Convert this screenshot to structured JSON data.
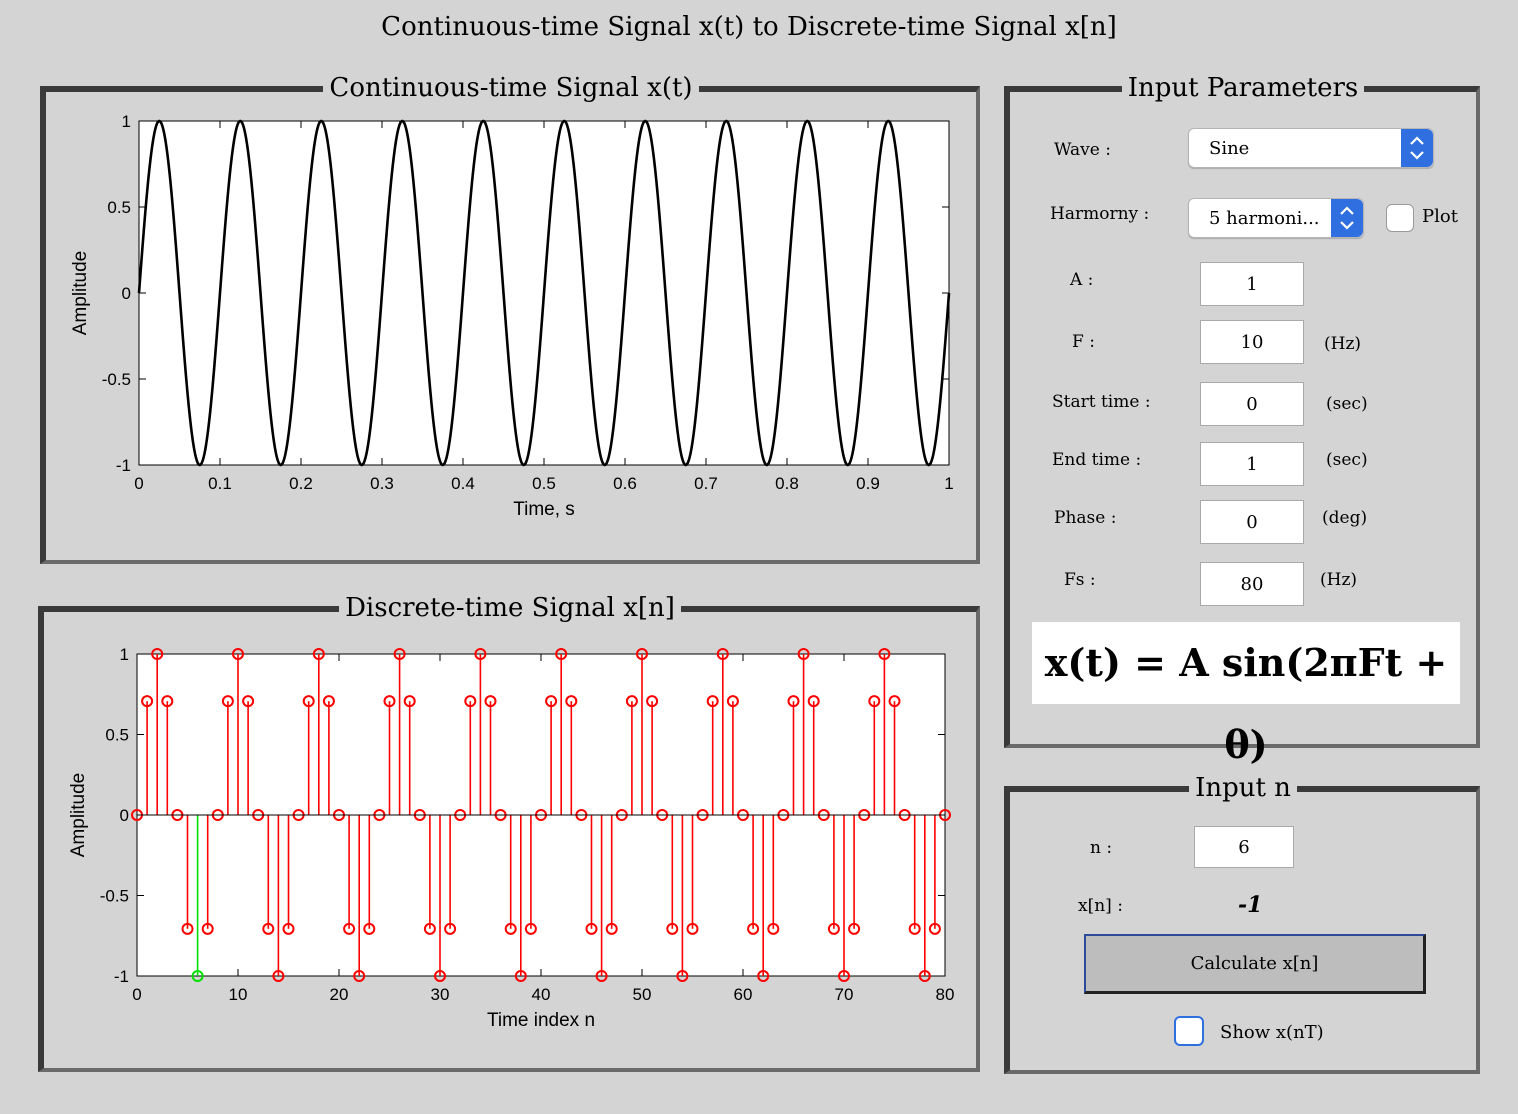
{
  "window_title": "Continuous-time Signal x(t) to Discrete-time Signal x[n]",
  "continuous_panel": {
    "title": "Continuous-time Signal x(t)",
    "chart_data": {
      "type": "line",
      "xlabel": "Time, s",
      "ylabel": "Amplitude",
      "xlim": [
        0,
        1
      ],
      "ylim": [
        -1,
        1
      ],
      "xticks": [
        "0",
        "0.1",
        "0.2",
        "0.3",
        "0.4",
        "0.5",
        "0.6",
        "0.7",
        "0.8",
        "0.9",
        "1"
      ],
      "yticks": [
        "-1",
        "-0.5",
        "0",
        "0.5",
        "1"
      ],
      "function": "sin(2*pi*10*t)",
      "amplitude": 1,
      "frequency_hz": 10,
      "t_start": 0,
      "t_end": 1,
      "line_color": "#000000"
    }
  },
  "discrete_panel": {
    "title": "Discrete-time Signal x[n]",
    "chart_data": {
      "type": "stem",
      "xlabel": "Time index n",
      "ylabel": "Amplitude",
      "xlim": [
        0,
        80
      ],
      "ylim": [
        -1,
        1
      ],
      "xticks": [
        "0",
        "10",
        "20",
        "30",
        "40",
        "50",
        "60",
        "70",
        "80"
      ],
      "yticks": [
        "-1",
        "-0.5",
        "0",
        "0.5",
        "1"
      ],
      "n": [
        0,
        1,
        2,
        3,
        4,
        5,
        6,
        7,
        8,
        9,
        10,
        11,
        12,
        13,
        14,
        15,
        16,
        17,
        18,
        19,
        20,
        21,
        22,
        23,
        24,
        25,
        26,
        27,
        28,
        29,
        30,
        31,
        32,
        33,
        34,
        35,
        36,
        37,
        38,
        39,
        40,
        41,
        42,
        43,
        44,
        45,
        46,
        47,
        48,
        49,
        50,
        51,
        52,
        53,
        54,
        55,
        56,
        57,
        58,
        59,
        60,
        61,
        62,
        63,
        64,
        65,
        66,
        67,
        68,
        69,
        70,
        71,
        72,
        73,
        74,
        75,
        76,
        77,
        78,
        79,
        80
      ],
      "values": [
        0,
        0.707,
        1,
        0.707,
        0,
        -0.707,
        -1,
        -0.707,
        0,
        0.707,
        1,
        0.707,
        0,
        -0.707,
        -1,
        -0.707,
        0,
        0.707,
        1,
        0.707,
        0,
        -0.707,
        -1,
        -0.707,
        0,
        0.707,
        1,
        0.707,
        0,
        -0.707,
        -1,
        -0.707,
        0,
        0.707,
        1,
        0.707,
        0,
        -0.707,
        -1,
        -0.707,
        0,
        0.707,
        1,
        0.707,
        0,
        -0.707,
        -1,
        -0.707,
        0,
        0.707,
        1,
        0.707,
        0,
        -0.707,
        -1,
        -0.707,
        0,
        0.707,
        1,
        0.707,
        0,
        -0.707,
        -1,
        -0.707,
        0,
        0.707,
        1,
        0.707,
        0,
        -0.707,
        -1,
        -0.707,
        0,
        0.707,
        1,
        0.707,
        0,
        -0.707,
        -1,
        -0.707,
        0
      ],
      "stem_color": "#ff0000",
      "highlight_index": 6,
      "highlight_color": "#00e000"
    }
  },
  "input_parameters": {
    "title": "Input Parameters",
    "wave_label": "Wave :",
    "wave_value": "Sine",
    "harmony_label": "Harmorny :",
    "harmony_value": "5 harmoni...",
    "plot_label": "Plot",
    "plot_checked": false,
    "a_label": "A :",
    "a_value": "1",
    "f_label": "F :",
    "f_value": "10",
    "f_unit": "(Hz)",
    "start_label": "Start time :",
    "start_value": "0",
    "start_unit": "(sec)",
    "end_label": "End time :",
    "end_value": "1",
    "end_unit": "(sec)",
    "phase_label": "Phase :",
    "phase_value": "0",
    "phase_unit": "(deg)",
    "fs_label": "Fs :",
    "fs_value": "80",
    "fs_unit": "(Hz)",
    "formula": "x(t) = A sin(2πFt + θ)"
  },
  "input_n": {
    "title": "Input n",
    "n_label": "n :",
    "n_value": "6",
    "xn_label": "x[n] :",
    "xn_value": "-1",
    "calculate_label": "Calculate x[n]",
    "show_label": "Show x(nT)",
    "show_checked": false
  },
  "colors": {
    "background": "#d4d4d4",
    "accent_blue": "#2f6fe0"
  }
}
